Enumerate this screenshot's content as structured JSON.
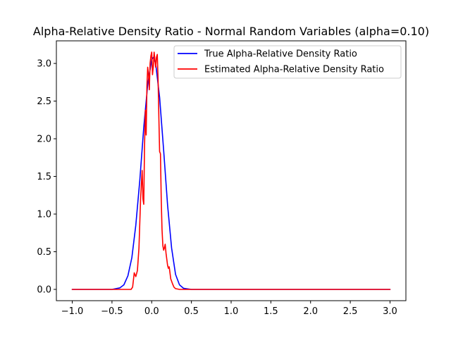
{
  "chart_data": {
    "type": "line",
    "title": "Alpha-Relative Density Ratio - Normal Random Variables (alpha=0.10)",
    "xlabel": "",
    "ylabel": "",
    "xlim": [
      -1.2,
      3.2
    ],
    "ylim": [
      -0.15,
      3.3
    ],
    "grid": false,
    "legend_position": "top-right",
    "x_ticks": [
      {
        "value": -1.0,
        "label": "−1.0"
      },
      {
        "value": -0.5,
        "label": "−0.5"
      },
      {
        "value": 0.0,
        "label": "0.0"
      },
      {
        "value": 0.5,
        "label": "0.5"
      },
      {
        "value": 1.0,
        "label": "1.0"
      },
      {
        "value": 1.5,
        "label": "1.5"
      },
      {
        "value": 2.0,
        "label": "2.0"
      },
      {
        "value": 2.5,
        "label": "2.5"
      },
      {
        "value": 3.0,
        "label": "3.0"
      }
    ],
    "y_ticks": [
      {
        "value": 0.0,
        "label": "0.0"
      },
      {
        "value": 0.5,
        "label": "0.5"
      },
      {
        "value": 1.0,
        "label": "1.0"
      },
      {
        "value": 1.5,
        "label": "1.5"
      },
      {
        "value": 2.0,
        "label": "2.0"
      },
      {
        "value": 2.5,
        "label": "2.5"
      },
      {
        "value": 3.0,
        "label": "3.0"
      }
    ],
    "series": [
      {
        "name": "True Alpha-Relative Density Ratio",
        "color": "#0000ff",
        "x": [
          -1.0,
          -0.5,
          -0.4,
          -0.35,
          -0.3,
          -0.25,
          -0.2,
          -0.15,
          -0.1,
          -0.05,
          0.0,
          0.02,
          0.05,
          0.1,
          0.15,
          0.2,
          0.25,
          0.3,
          0.35,
          0.4,
          0.5,
          0.6,
          1.0,
          2.0,
          3.0
        ],
        "y": [
          0.0,
          0.0,
          0.02,
          0.06,
          0.18,
          0.42,
          0.85,
          1.45,
          2.15,
          2.72,
          3.05,
          3.08,
          3.0,
          2.55,
          1.85,
          1.12,
          0.55,
          0.2,
          0.06,
          0.015,
          0.0,
          0.0,
          0.0,
          0.0,
          0.0
        ]
      },
      {
        "name": "Estimated Alpha-Relative Density Ratio",
        "color": "#ff0000",
        "x": [
          -1.0,
          -0.5,
          -0.3,
          -0.26,
          -0.24,
          -0.22,
          -0.2,
          -0.18,
          -0.16,
          -0.14,
          -0.12,
          -0.11,
          -0.1,
          -0.09,
          -0.08,
          -0.07,
          -0.06,
          -0.05,
          -0.04,
          -0.03,
          -0.02,
          -0.01,
          0.0,
          0.01,
          0.02,
          0.03,
          0.04,
          0.05,
          0.06,
          0.07,
          0.08,
          0.09,
          0.1,
          0.11,
          0.12,
          0.13,
          0.14,
          0.15,
          0.16,
          0.17,
          0.18,
          0.19,
          0.2,
          0.21,
          0.22,
          0.23,
          0.24,
          0.26,
          0.28,
          0.3,
          0.35,
          0.4,
          1.0,
          2.0,
          3.0
        ],
        "y": [
          0.0,
          0.0,
          0.0,
          0.0,
          0.03,
          0.22,
          0.17,
          0.25,
          0.55,
          1.2,
          1.58,
          1.2,
          1.13,
          1.9,
          2.38,
          2.05,
          2.7,
          2.95,
          2.85,
          2.65,
          3.0,
          3.1,
          3.15,
          2.85,
          2.95,
          3.15,
          3.05,
          2.95,
          3.08,
          3.12,
          2.8,
          2.3,
          1.83,
          1.8,
          1.2,
          0.8,
          0.58,
          0.52,
          0.55,
          0.6,
          0.48,
          0.4,
          0.32,
          0.28,
          0.3,
          0.22,
          0.14,
          0.08,
          0.03,
          0.01,
          0.0,
          0.0,
          0.0,
          0.0,
          0.0
        ]
      }
    ]
  }
}
